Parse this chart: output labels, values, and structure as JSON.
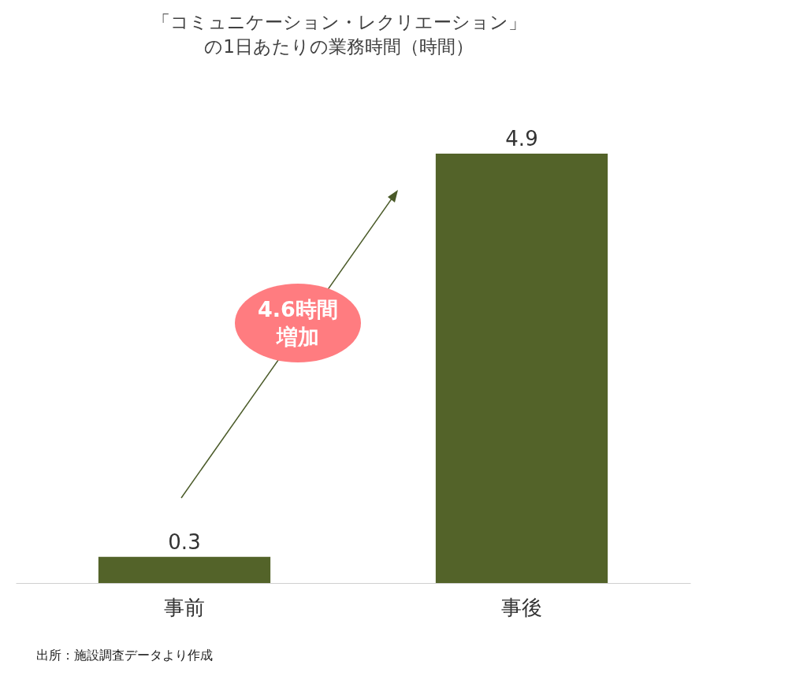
{
  "chart_data": {
    "type": "bar",
    "title": "「コミュニケーション・レクリエーション」",
    "subtitle": "の1日あたりの業務時間（時間）",
    "categories": [
      "事前",
      "事後"
    ],
    "values": [
      0.3,
      4.9
    ],
    "color": "#536329",
    "data_labels": true,
    "annotations": [
      "4.6時間増加",
      "出所：施設調査データより作成"
    ]
  }
}
